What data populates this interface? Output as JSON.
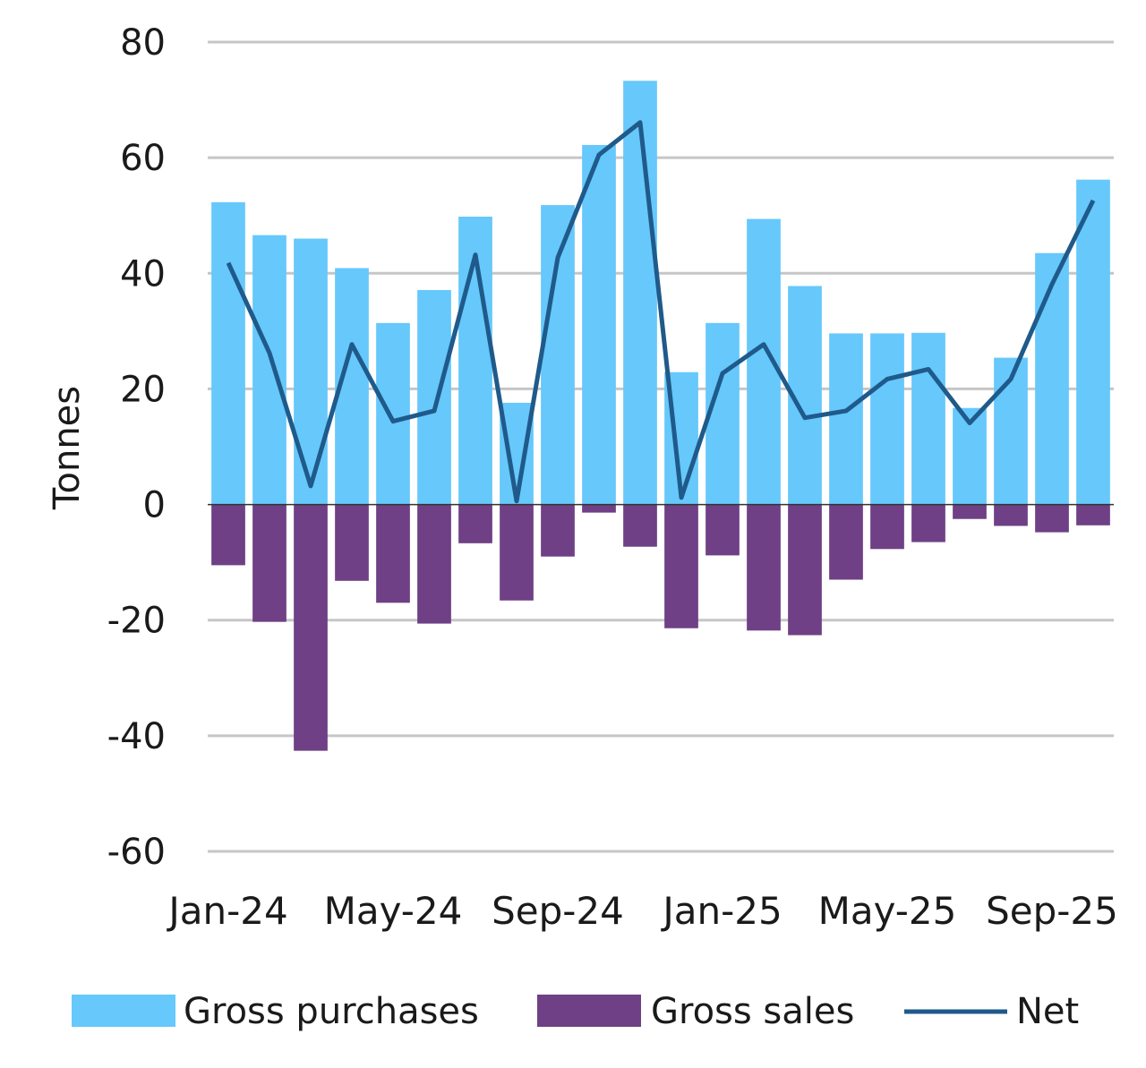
{
  "chart_data": {
    "type": "bar",
    "title": "",
    "xlabel": "",
    "ylabel": "Tonnes",
    "ylim": [
      -60,
      80
    ],
    "yticks": [
      80,
      60,
      40,
      20,
      0,
      -20,
      -40,
      -60
    ],
    "grid": true,
    "legend_position": "bottom",
    "categories": [
      "Jan-24",
      "Feb-24",
      "Mar-24",
      "Apr-24",
      "May-24",
      "Jun-24",
      "Jul-24",
      "Aug-24",
      "Sep-24",
      "Oct-24",
      "Nov-24",
      "Dec-24",
      "Jan-25",
      "Feb-25",
      "Mar-25",
      "Apr-25",
      "May-25",
      "Jun-25",
      "Jul-25",
      "Aug-25",
      "Sep-25",
      "Oct-25"
    ],
    "xtick_labels": [
      "Jan-24",
      "May-24",
      "Sep-24",
      "Jan-25",
      "May-25",
      "Sep-25"
    ],
    "series": [
      {
        "name": "Gross purchases",
        "type": "bar",
        "color": "#66c8fb",
        "values": [
          52.3,
          46.6,
          46.0,
          40.9,
          31.4,
          37.1,
          49.8,
          17.6,
          51.8,
          62.2,
          73.3,
          22.9,
          31.4,
          49.4,
          37.8,
          29.6,
          29.6,
          29.7,
          16.7,
          25.4,
          43.5,
          56.2
        ]
      },
      {
        "name": "Gross sales",
        "type": "bar",
        "color": "#6f4085",
        "values": [
          -10.5,
          -20.3,
          -42.6,
          -13.2,
          -17.0,
          -20.6,
          -6.7,
          -16.6,
          -9.0,
          -1.4,
          -7.3,
          -21.4,
          -8.8,
          -21.8,
          -22.6,
          -13.0,
          -7.7,
          -6.5,
          -2.5,
          -3.7,
          -4.8,
          -3.6
        ]
      },
      {
        "name": "Net",
        "type": "line",
        "color": "#1f5a8a",
        "values": [
          41.8,
          26.2,
          3.2,
          27.7,
          14.4,
          16.2,
          43.2,
          0.6,
          42.7,
          60.5,
          66.1,
          1.2,
          22.7,
          27.7,
          15.0,
          16.2,
          21.7,
          23.4,
          14.1,
          21.7,
          38.1,
          52.6
        ]
      }
    ]
  }
}
